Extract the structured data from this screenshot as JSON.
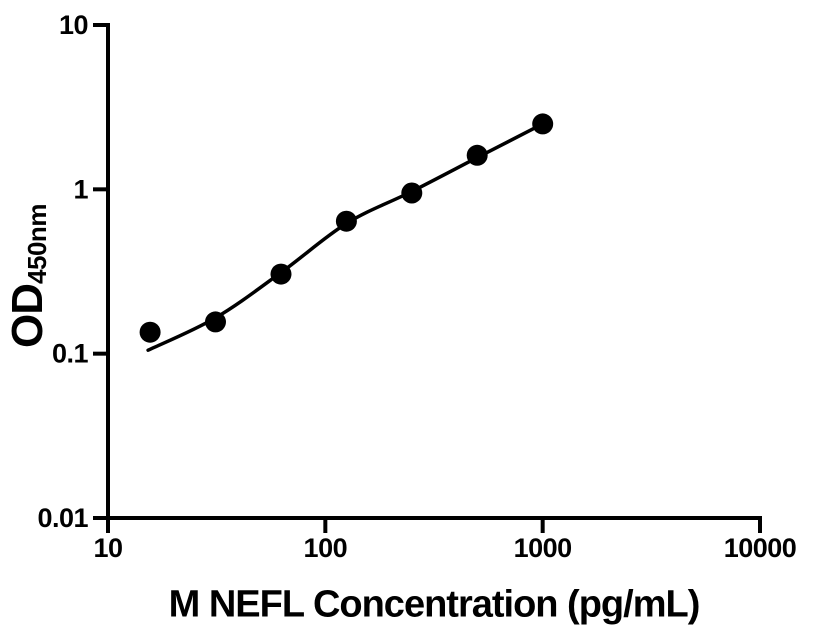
{
  "figure": {
    "background_color": "#ffffff",
    "foreground_color": "#000000"
  },
  "chart_data": {
    "type": "scatter",
    "title": "",
    "xlabel": "M NEFL Concentration (pg/mL)",
    "ylabel": "OD450nm",
    "ylabel_main": "OD",
    "ylabel_sub": "450nm",
    "x_scale": "log",
    "y_scale": "log",
    "xlim": [
      10,
      10000
    ],
    "ylim": [
      0.01,
      10
    ],
    "grid": false,
    "legend": false,
    "x_tick_values": [
      10,
      100,
      1000,
      10000
    ],
    "x_tick_labels": [
      "10",
      "100",
      "1000",
      "10000"
    ],
    "y_tick_values": [
      10,
      1,
      0.1,
      0.01
    ],
    "y_tick_labels": [
      "10",
      "1",
      "0.1",
      "0.01"
    ],
    "series": [
      {
        "name": "standard-points",
        "type": "scatter",
        "marker": "filled-circle",
        "color": "#000000",
        "marker_radius": 10.5,
        "points": [
          {
            "x": 15.625,
            "y": 0.135
          },
          {
            "x": 31.25,
            "y": 0.156
          },
          {
            "x": 62.5,
            "y": 0.305
          },
          {
            "x": 125,
            "y": 0.64
          },
          {
            "x": 250,
            "y": 0.95
          },
          {
            "x": 500,
            "y": 1.61
          },
          {
            "x": 1000,
            "y": 2.5
          }
        ]
      },
      {
        "name": "fit-curve",
        "type": "line",
        "color": "#000000",
        "stroke_width": 3.5,
        "points": [
          {
            "x": 15.3,
            "y": 0.105
          },
          {
            "x": 31.2,
            "y": 0.165
          },
          {
            "x": 63,
            "y": 0.314
          },
          {
            "x": 125,
            "y": 0.62
          },
          {
            "x": 250,
            "y": 0.97
          },
          {
            "x": 500,
            "y": 1.56
          },
          {
            "x": 1000,
            "y": 2.5
          }
        ]
      }
    ]
  }
}
